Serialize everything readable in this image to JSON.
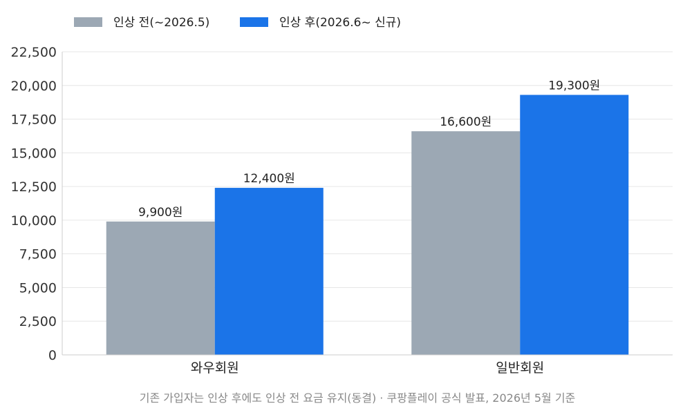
{
  "chart_data": {
    "type": "bar",
    "categories": [
      "와우회원",
      "일반회원"
    ],
    "series": [
      {
        "name": "인상 전(~2026.5)",
        "color": "#9ca8b4",
        "values": [
          9900,
          16600
        ],
        "labels": [
          "9,900원",
          "16,600원"
        ]
      },
      {
        "name": "인상 후(2026.6~ 신규)",
        "color": "#1b74e8",
        "values": [
          12400,
          19300
        ],
        "labels": [
          "12,400원",
          "19,300원"
        ]
      }
    ],
    "ylim": [
      0,
      22500
    ],
    "yticks": [
      0,
      2500,
      5000,
      7500,
      10000,
      12500,
      15000,
      17500,
      20000,
      22500
    ],
    "ytick_labels": [
      "0",
      "2,500",
      "5,000",
      "7,500",
      "10,000",
      "12,500",
      "15,000",
      "17,500",
      "20,000",
      "22,500"
    ],
    "grid": true,
    "legend_position": "top-left",
    "footnote": "기존 가입자는 인상 후에도 인상 전 요금 유지(동결) · 쿠팡플레이 공식 발표, 2026년 5월 기준"
  }
}
